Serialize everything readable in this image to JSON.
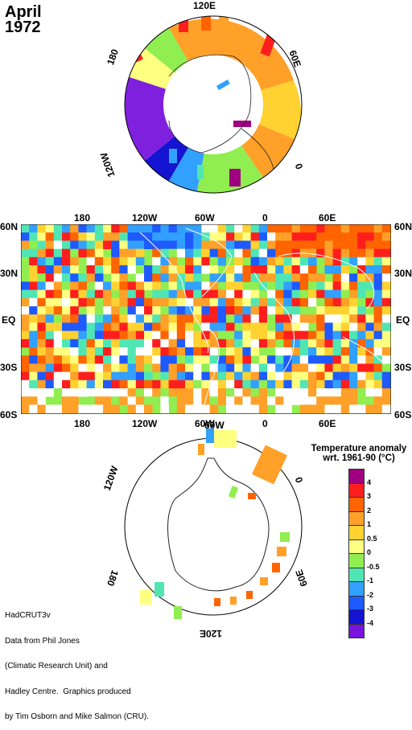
{
  "title": {
    "month": "April",
    "year": "1972"
  },
  "north_map": {
    "labels": [
      "120E",
      "180",
      "60E",
      "0",
      "120W"
    ]
  },
  "middle_map": {
    "lon_labels_top": [
      "180",
      "120W",
      "60W",
      "0",
      "60E"
    ],
    "lon_labels_bottom": [
      "180",
      "120W",
      "60W",
      "0",
      "60E"
    ],
    "lat_labels_left": [
      "60N",
      "30N",
      "EQ",
      "30S",
      "60S"
    ],
    "lat_labels_right": [
      "60N",
      "30N",
      "EQ",
      "30S",
      "60S"
    ]
  },
  "south_map": {
    "labels": [
      "60W",
      "120W",
      "0",
      "180",
      "60E",
      "120E"
    ]
  },
  "legend": {
    "title_line1": "Temperature anomaly",
    "title_line2": "wrt. 1961-90  (°C)",
    "levels": [
      "4",
      "3",
      "2",
      "1",
      "0.5",
      "0",
      "-0.5",
      "-1",
      "-2",
      "-3",
      "-4"
    ],
    "colors": [
      "#a00080",
      "#ff1e1e",
      "#ff6400",
      "#ffa028",
      "#ffd232",
      "#ffff80",
      "#90ee50",
      "#50e6b4",
      "#32a0ff",
      "#1e5aff",
      "#1414d2",
      "#7814dc"
    ]
  },
  "credit": {
    "line1": "HadCRUT3v",
    "line2": "Data from Phil Jones",
    "line3": "(Climatic Research Unit) and",
    "line4": "Hadley Centre.  Graphics produced",
    "line5": "by Tim Osborn and Mike Salmon (CRU)."
  }
}
